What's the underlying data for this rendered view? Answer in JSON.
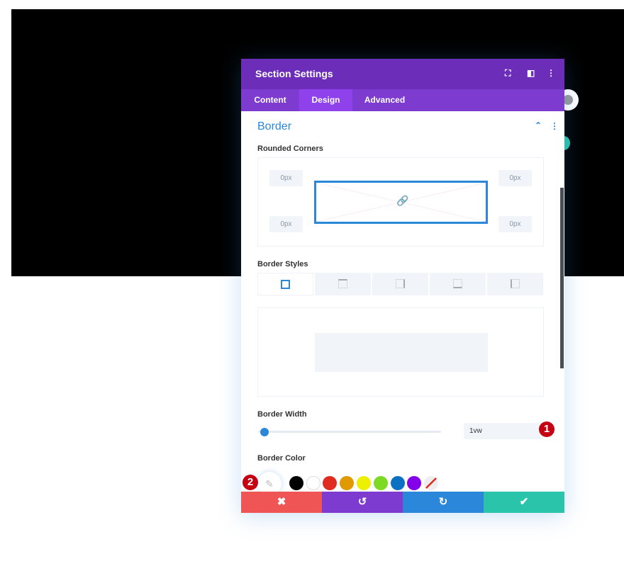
{
  "modal": {
    "title": "Section Settings",
    "tabs": [
      "Content",
      "Design",
      "Advanced"
    ],
    "active_tab": "Design"
  },
  "section": {
    "title": "Border",
    "rounded_corners_label": "Rounded Corners",
    "corners": {
      "top_left": "0px",
      "top_right": "0px",
      "bottom_left": "0px",
      "bottom_right": "0px"
    },
    "border_styles_label": "Border Styles",
    "border_width_label": "Border Width",
    "border_width_value": "1vw",
    "border_width_slider": 0.03,
    "border_color_label": "Border Color"
  },
  "colors": {
    "swatches": [
      "#000000",
      "#ffffff",
      "#e02b20",
      "#e09900",
      "#edf000",
      "#7cda24",
      "#0c71c3",
      "#8300e9"
    ],
    "accent": "#2b87da"
  },
  "badges": [
    "1",
    "2"
  ],
  "footer": {
    "cancel": "✖",
    "undo": "↺",
    "redo": "↻",
    "save": "✔"
  }
}
